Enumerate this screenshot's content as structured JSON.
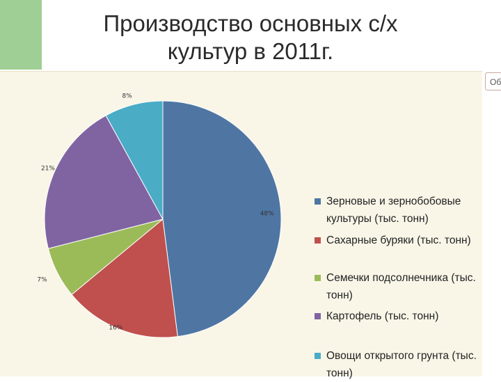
{
  "title_line1": "Производство основных с/х",
  "title_line2": "культур в 2011г.",
  "side_tab_label": "Об.",
  "chart_data": {
    "type": "pie",
    "title": "Производство основных с/х культур в 2011г.",
    "legend_position": "right",
    "slices": [
      {
        "name": "Зерновые и зернобобовые культуры (тыс. тонн)",
        "value": 48,
        "label": "48%",
        "color": "#4f76a3"
      },
      {
        "name": "Сахарные буряки (тыс. тонн)",
        "value": 16,
        "label": "16%",
        "color": "#c0504d"
      },
      {
        "name": "Семечки подсолнечника (тыс. тонн)",
        "value": 7,
        "label": "7%",
        "color": "#9bbb59"
      },
      {
        "name": "Картофель (тыс. тонн)",
        "value": 21,
        "label": "21%",
        "color": "#8064a2"
      },
      {
        "name": "Овощи открытого грунта (тыс. тонн)",
        "value": 8,
        "label": "8%",
        "color": "#4bacc6"
      }
    ]
  }
}
